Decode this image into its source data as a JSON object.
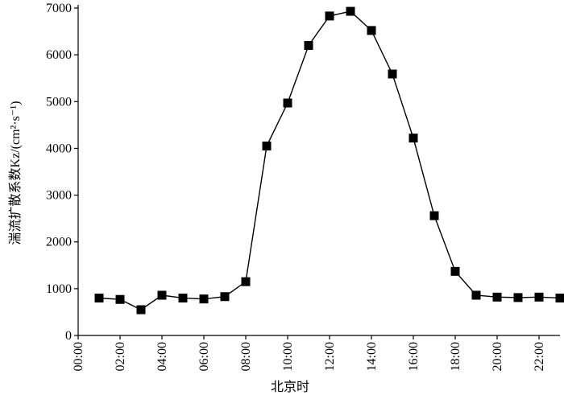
{
  "chart_data": {
    "type": "line",
    "x_label": "北京时",
    "y_label": "湍流扩散系数Kz/(cm²·s⁻¹)",
    "x": [
      1,
      2,
      3,
      4,
      5,
      6,
      7,
      8,
      9,
      10,
      11,
      12,
      13,
      14,
      15,
      16,
      17,
      18,
      19,
      20,
      21,
      22,
      23
    ],
    "series": [
      {
        "color": "#000000",
        "values": [
          800,
          770,
          550,
          860,
          800,
          780,
          830,
          1150,
          4050,
          4970,
          6200,
          6830,
          6930,
          6520,
          5590,
          4220,
          2560,
          1370,
          860,
          820,
          810,
          820,
          800
        ]
      }
    ],
    "xlim": [
      0,
      23
    ],
    "xticks": [
      {
        "value": 0,
        "label": "00:00"
      },
      {
        "value": 2,
        "label": "02:00"
      },
      {
        "value": 4,
        "label": "04:00"
      },
      {
        "value": 6,
        "label": "06:00"
      },
      {
        "value": 8,
        "label": "08:00"
      },
      {
        "value": 10,
        "label": "10:00"
      },
      {
        "value": 12,
        "label": "12:00"
      },
      {
        "value": 14,
        "label": "14:00"
      },
      {
        "value": 16,
        "label": "16:00"
      },
      {
        "value": 18,
        "label": "18:00"
      },
      {
        "value": 20,
        "label": "20:00"
      },
      {
        "value": 22,
        "label": "22:00"
      }
    ],
    "ylim": [
      0,
      7000
    ],
    "yticks": [
      0,
      1000,
      2000,
      3000,
      4000,
      5000,
      6000,
      7000
    ]
  }
}
